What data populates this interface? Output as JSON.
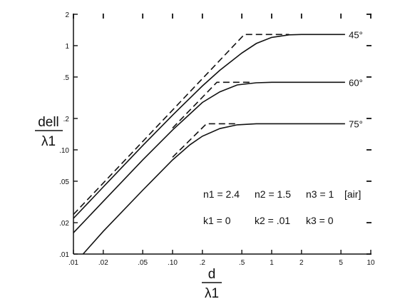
{
  "chart_data": {
    "type": "line",
    "x_scale": "log",
    "y_scale": "log",
    "xlim": [
      0.01,
      10
    ],
    "ylim": [
      0.01,
      2
    ],
    "grid": false,
    "xlabel": {
      "numerator": "d",
      "denominator": "λ1"
    },
    "ylabel": {
      "numerator": "dell",
      "denominator": "λ1"
    },
    "x_ticks": [
      0.01,
      0.02,
      0.05,
      0.1,
      0.2,
      0.5,
      1,
      2,
      5,
      10
    ],
    "x_tick_labels": [
      ".01",
      ".02",
      ".05",
      ".10",
      ".2",
      ".5",
      "1",
      "2",
      "5",
      "10"
    ],
    "y_ticks": [
      0.01,
      0.02,
      0.05,
      0.1,
      0.2,
      0.5,
      1,
      2
    ],
    "y_tick_labels": [
      ".01",
      ".02",
      ".05",
      ".10",
      ".2",
      ".5",
      "1",
      "2"
    ],
    "series": [
      {
        "name": "45°",
        "style": "solid",
        "x": [
          0.01,
          0.02,
          0.05,
          0.1,
          0.2,
          0.3,
          0.5,
          0.7,
          1,
          1.5,
          2,
          3,
          5.5
        ],
        "y": [
          0.022,
          0.044,
          0.11,
          0.215,
          0.41,
          0.58,
          0.85,
          1.05,
          1.2,
          1.27,
          1.28,
          1.28,
          1.28
        ]
      },
      {
        "name": "45°",
        "style": "dashed",
        "x": [
          0.01,
          0.53,
          1.5
        ],
        "y": [
          0.024,
          1.28,
          1.28
        ]
      },
      {
        "name": "60°",
        "style": "solid",
        "x": [
          0.01,
          0.02,
          0.05,
          0.1,
          0.2,
          0.3,
          0.45,
          0.7,
          1,
          2,
          5.5
        ],
        "y": [
          0.016,
          0.032,
          0.08,
          0.155,
          0.285,
          0.36,
          0.42,
          0.44,
          0.445,
          0.445,
          0.445
        ]
      },
      {
        "name": "60°",
        "style": "dashed",
        "x": [
          0.1,
          0.28,
          0.6
        ],
        "y": [
          0.162,
          0.445,
          0.445
        ]
      },
      {
        "name": "75°",
        "style": "solid",
        "x": [
          0.0125,
          0.02,
          0.05,
          0.1,
          0.15,
          0.2,
          0.3,
          0.45,
          0.7,
          1,
          2,
          5.5
        ],
        "y": [
          0.01,
          0.0165,
          0.041,
          0.08,
          0.112,
          0.135,
          0.16,
          0.174,
          0.178,
          0.178,
          0.178,
          0.178
        ]
      },
      {
        "name": "75°",
        "style": "dashed",
        "x": [
          0.1,
          0.22,
          0.45
        ],
        "y": [
          0.085,
          0.178,
          0.178
        ]
      }
    ],
    "curve_labels": [
      {
        "text": "45°",
        "x": 6,
        "y": 1.28
      },
      {
        "text": "60°",
        "x": 6,
        "y": 0.445
      },
      {
        "text": "75°",
        "x": 6,
        "y": 0.178
      }
    ],
    "annotations": {
      "line1": [
        "n1 = 2.4",
        "n2 = 1.5",
        "n3 = 1",
        "[air]"
      ],
      "line2": [
        "k1 = 0",
        "k2 = .01",
        "k3 = 0"
      ]
    }
  }
}
